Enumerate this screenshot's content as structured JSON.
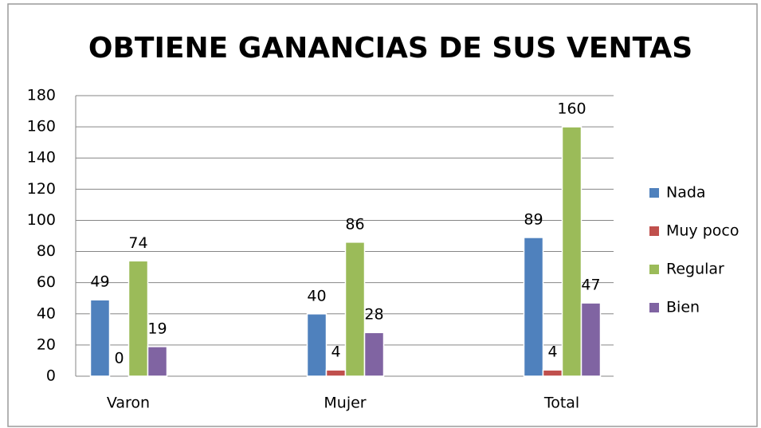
{
  "chart_data": {
    "type": "bar",
    "title": "OBTIENE GANANCIAS DE SUS VENTAS",
    "categories": [
      "Varon",
      "Mujer",
      "Total"
    ],
    "series": [
      {
        "name": "Nada",
        "color": "#4f81bd",
        "values": [
          49,
          40,
          89
        ]
      },
      {
        "name": "Muy poco",
        "color": "#c0504d",
        "values": [
          0,
          4,
          4
        ]
      },
      {
        "name": "Regular",
        "color": "#9bbb59",
        "values": [
          74,
          86,
          160
        ]
      },
      {
        "name": "Bien",
        "color": "#8064a2",
        "values": [
          19,
          28,
          47
        ]
      }
    ],
    "ylim": [
      0,
      180
    ],
    "yticks": [
      0,
      20,
      40,
      60,
      80,
      100,
      120,
      140,
      160,
      180
    ],
    "grid": true,
    "legend": "right"
  }
}
